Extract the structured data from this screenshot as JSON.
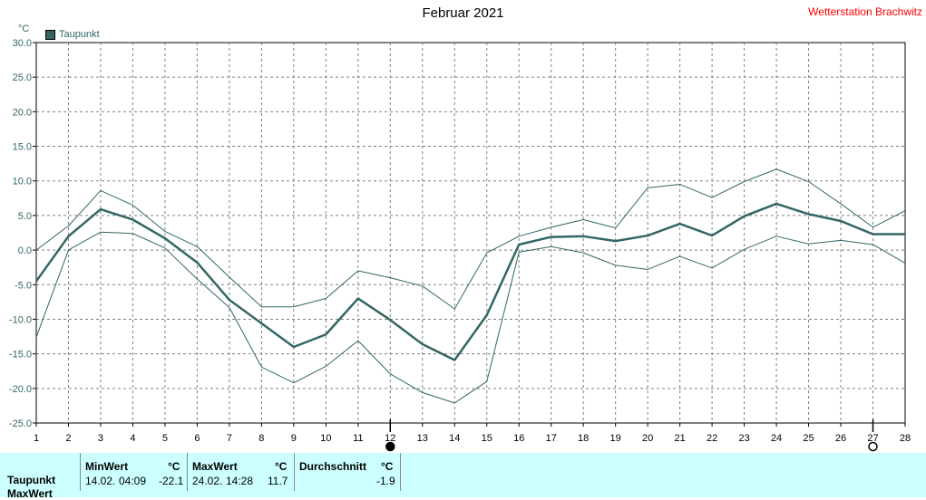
{
  "header": {
    "title": "Februar 2021",
    "station": "Wetterstation Brachwitz"
  },
  "legend": {
    "unit": "°C",
    "series_label": "Taupunkt"
  },
  "stats": {
    "row_label": "Taupunkt",
    "row2_label": "MaxWert",
    "min": {
      "label": "MinWert",
      "unit": "°C",
      "date": "14.02.",
      "time": "04:09",
      "value": "-22.1"
    },
    "max": {
      "label": "MaxWert",
      "unit": "°C",
      "date": "24.02.",
      "time": "14:28",
      "value": "11.7"
    },
    "avg": {
      "label": "Durchschnitt",
      "unit": "°C",
      "value": "-1.9"
    }
  },
  "chart_data": {
    "type": "line",
    "title": "Februar 2021",
    "ylabel": "°C",
    "xlim": [
      1,
      28
    ],
    "ylim": [
      -25,
      30
    ],
    "x": [
      1,
      2,
      3,
      4,
      5,
      6,
      7,
      8,
      9,
      10,
      11,
      12,
      13,
      14,
      15,
      16,
      17,
      18,
      19,
      20,
      21,
      22,
      23,
      24,
      25,
      26,
      27,
      28
    ],
    "y_ticks": [
      "30.0",
      "25.0",
      "20.0",
      "15.0",
      "10.0",
      "5.0",
      "0.0",
      "-5.0",
      "-10.0",
      "-15.0",
      "-20.0",
      "-25.0"
    ],
    "grid": true,
    "legend_position": "top-left",
    "series": [
      {
        "name": "Taupunkt",
        "role": "mean",
        "values": [
          -4.5,
          2.0,
          5.9,
          4.4,
          1.7,
          -1.8,
          -7.2,
          -10.6,
          -14.0,
          -12.2,
          -7.0,
          -10.1,
          -13.6,
          -15.9,
          -9.4,
          0.8,
          1.9,
          2.0,
          1.3,
          2.1,
          3.8,
          2.1,
          4.9,
          6.7,
          5.2,
          4.2,
          2.3,
          2.3
        ]
      },
      {
        "role": "max",
        "values": [
          0.0,
          3.5,
          8.6,
          6.5,
          2.7,
          0.5,
          -3.9,
          -8.2,
          -8.2,
          -7.0,
          -3.0,
          -4.0,
          -5.2,
          -8.5,
          -0.4,
          2.0,
          3.3,
          4.4,
          3.2,
          9.0,
          9.5,
          7.6,
          9.9,
          11.7,
          9.9,
          6.7,
          3.3,
          5.7
        ]
      },
      {
        "role": "min",
        "values": [
          -12.6,
          0.0,
          2.6,
          2.4,
          0.3,
          -4.2,
          -8.3,
          -16.9,
          -19.2,
          -16.8,
          -13.1,
          -17.9,
          -20.6,
          -22.1,
          -19.0,
          -0.3,
          0.5,
          -0.4,
          -2.2,
          -2.8,
          -0.9,
          -2.6,
          0.1,
          2.0,
          0.9,
          1.4,
          0.8,
          -1.9
        ]
      }
    ],
    "colors": {
      "line": "#336666",
      "grid": "#808080",
      "stats_bg": "#ccffff",
      "station": "#ff0000"
    },
    "markers": [
      {
        "x": 12,
        "symbol": "filled-circle"
      },
      {
        "x": 27,
        "symbol": "open-circle"
      }
    ]
  }
}
